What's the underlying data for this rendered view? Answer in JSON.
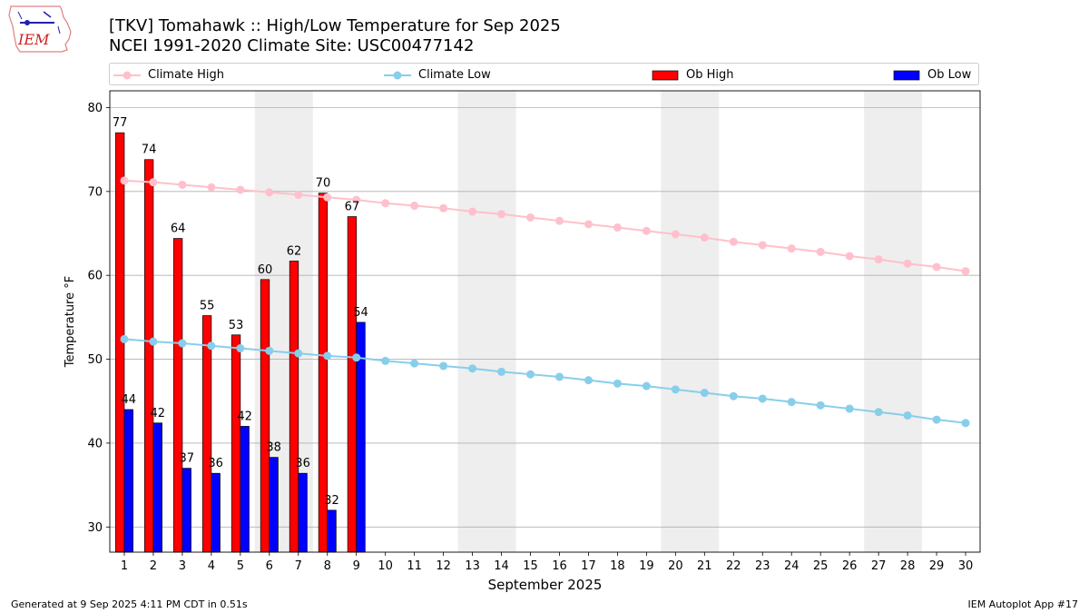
{
  "title": "[TKV] Tomahawk :: High/Low Temperature for Sep 2025",
  "subtitle": "NCEI 1991-2020 Climate Site: USC00477142",
  "footer_left": "Generated at 9 Sep 2025 4:11 PM CDT in 0.51s",
  "footer_right": "IEM Autoplot App #17",
  "logo_text": "IEM",
  "colors": {
    "ob_high": "#ff0000",
    "ob_low": "#0000ff",
    "climate_high": "#ffc0cb",
    "climate_low": "#87ceeb",
    "weekend_band": "#eeeeee",
    "grid": "#b0b0b0"
  },
  "legend": [
    {
      "label": "Climate High",
      "kind": "line",
      "color": "#ffc0cb"
    },
    {
      "label": "Climate Low",
      "kind": "line",
      "color": "#87ceeb"
    },
    {
      "label": "Ob High",
      "kind": "bar",
      "color": "#ff0000"
    },
    {
      "label": "Ob Low",
      "kind": "bar",
      "color": "#0000ff"
    }
  ],
  "chart_data": {
    "type": "bar",
    "xlabel": "September 2025",
    "ylabel": "Temperature °F",
    "ylim": [
      27,
      82
    ],
    "xlim": [
      0.5,
      30.5
    ],
    "yticks": [
      30,
      40,
      50,
      60,
      70,
      80
    ],
    "grid": "horizontal",
    "legend_position": "top",
    "x": [
      1,
      2,
      3,
      4,
      5,
      6,
      7,
      8,
      9,
      10,
      11,
      12,
      13,
      14,
      15,
      16,
      17,
      18,
      19,
      20,
      21,
      22,
      23,
      24,
      25,
      26,
      27,
      28,
      29,
      30
    ],
    "ob_days": [
      1,
      2,
      3,
      4,
      5,
      6,
      7,
      8,
      9
    ],
    "ob_high": [
      77,
      73.8,
      64.4,
      55.2,
      52.9,
      59.5,
      61.7,
      69.8,
      67
    ],
    "ob_low": [
      44,
      42.4,
      37,
      36.4,
      42,
      38.3,
      36.4,
      32,
      54.4
    ],
    "ob_high_labels": [
      "77",
      "74",
      "64",
      "55",
      "53",
      "60",
      "62",
      "70",
      "67"
    ],
    "ob_low_labels": [
      "44",
      "42",
      "37",
      "36",
      "42",
      "38",
      "36",
      "32",
      "54"
    ],
    "climate_high": [
      71.3,
      71.1,
      70.8,
      70.5,
      70.2,
      69.9,
      69.6,
      69.3,
      69.0,
      68.6,
      68.3,
      68.0,
      67.6,
      67.3,
      66.9,
      66.5,
      66.1,
      65.7,
      65.3,
      64.9,
      64.5,
      64.0,
      63.6,
      63.2,
      62.8,
      62.3,
      61.9,
      61.4,
      61.0,
      60.5
    ],
    "climate_low": [
      52.4,
      52.1,
      51.9,
      51.6,
      51.3,
      51.0,
      50.7,
      50.4,
      50.2,
      49.8,
      49.5,
      49.2,
      48.9,
      48.5,
      48.2,
      47.9,
      47.5,
      47.1,
      46.8,
      46.4,
      46.0,
      45.6,
      45.3,
      44.9,
      44.5,
      44.1,
      43.7,
      43.3,
      42.8,
      42.4
    ],
    "weekend_bands": [
      [
        5.5,
        7.5
      ],
      [
        12.5,
        14.5
      ],
      [
        19.5,
        21.5
      ],
      [
        26.5,
        28.5
      ]
    ]
  }
}
